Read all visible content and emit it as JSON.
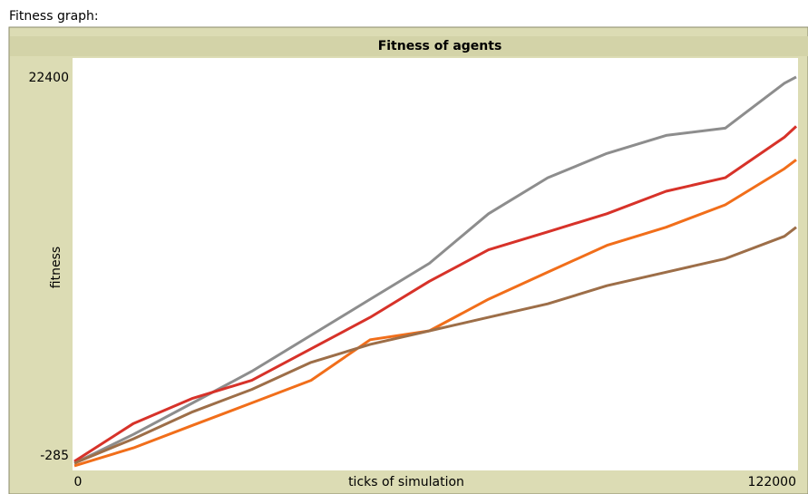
{
  "widget_label": "Fitness graph:",
  "chart_data": {
    "type": "line",
    "title": "Fitness of agents",
    "x_label": "ticks of simulation",
    "y_label": "fitness",
    "xlim": [
      0,
      122000
    ],
    "xticks": [
      0,
      122000
    ],
    "ylim": [
      -285,
      22400
    ],
    "yticks": [
      -285,
      22400
    ],
    "x": [
      0,
      10000,
      20000,
      30000,
      40000,
      50000,
      60000,
      70000,
      80000,
      90000,
      100000,
      110000,
      120000,
      122000
    ],
    "series": [
      {
        "color": "#8d8d8d",
        "values": [
          -80,
          1540,
          3310,
          5090,
          7110,
          9140,
          11160,
          13950,
          15970,
          17340,
          18350,
          18760,
          21290,
          21640
        ]
      },
      {
        "color": "#d73229",
        "values": [
          20,
          2150,
          3570,
          4580,
          6350,
          8120,
          10150,
          11920,
          12930,
          13950,
          15210,
          15970,
          18250,
          18860
        ]
      },
      {
        "color": "#f16e1a",
        "values": [
          -230,
          780,
          2050,
          3310,
          4580,
          6860,
          7360,
          9140,
          10660,
          12170,
          13190,
          14450,
          16480,
          16980
        ]
      },
      {
        "color": "#9d6e48",
        "values": [
          -80,
          1290,
          2810,
          4070,
          5590,
          6600,
          7360,
          8120,
          8880,
          9900,
          10660,
          11420,
          12680,
          13190
        ]
      }
    ]
  }
}
